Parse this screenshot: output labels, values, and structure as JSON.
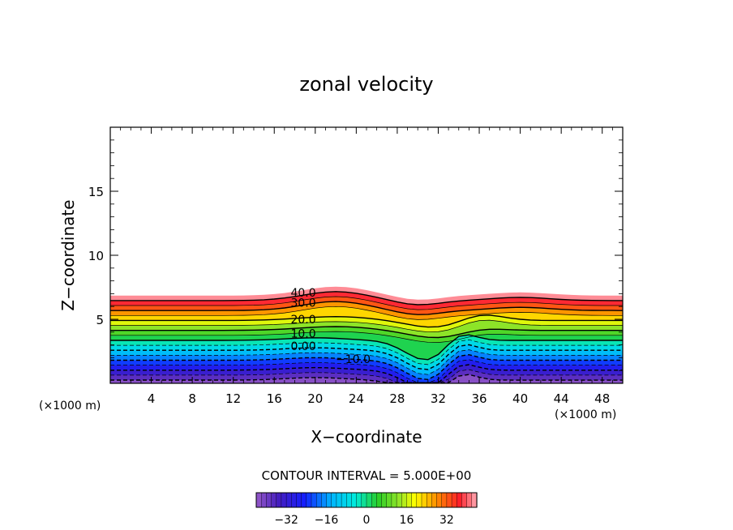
{
  "chart_data": {
    "type": "contour",
    "title": "zonal velocity",
    "xlabel": "X−coordinate",
    "ylabel": "Z−coordinate",
    "x_unit_left": "(×1000 m)",
    "x_unit_right": "(×1000 m)",
    "xlim": [
      0,
      50
    ],
    "ylim": [
      0,
      20
    ],
    "x_ticks": [
      4,
      8,
      12,
      16,
      20,
      24,
      28,
      32,
      36,
      40,
      44,
      48
    ],
    "y_ticks": [
      5,
      10,
      15
    ],
    "contour_interval_text": "CONTOUR INTERVAL = 5.000E+00",
    "contour_interval": 5.0,
    "contour_labels": [
      {
        "text": "40.0",
        "x": 17.6,
        "y": 7.1
      },
      {
        "text": "30.0",
        "x": 17.6,
        "y": 6.3
      },
      {
        "text": "20.0",
        "x": 17.6,
        "y": 5.0
      },
      {
        "text": "10.0",
        "x": 17.6,
        "y": 3.9
      },
      {
        "text": "0.00",
        "x": 17.6,
        "y": 2.9
      },
      {
        "text": "−10.0",
        "x": 22.0,
        "y": 1.9
      }
    ],
    "colorbar": {
      "range": [
        -44,
        44
      ],
      "ticks": [
        -32,
        -16,
        0,
        16,
        32
      ],
      "tick_labels": [
        "−32",
        "−16",
        "0",
        "16",
        "32"
      ]
    },
    "colors": {
      "level_high": "#ff3030",
      "level_mid": "#33cc22",
      "level_low": "#1020ff",
      "contour_line": "#000000"
    }
  }
}
